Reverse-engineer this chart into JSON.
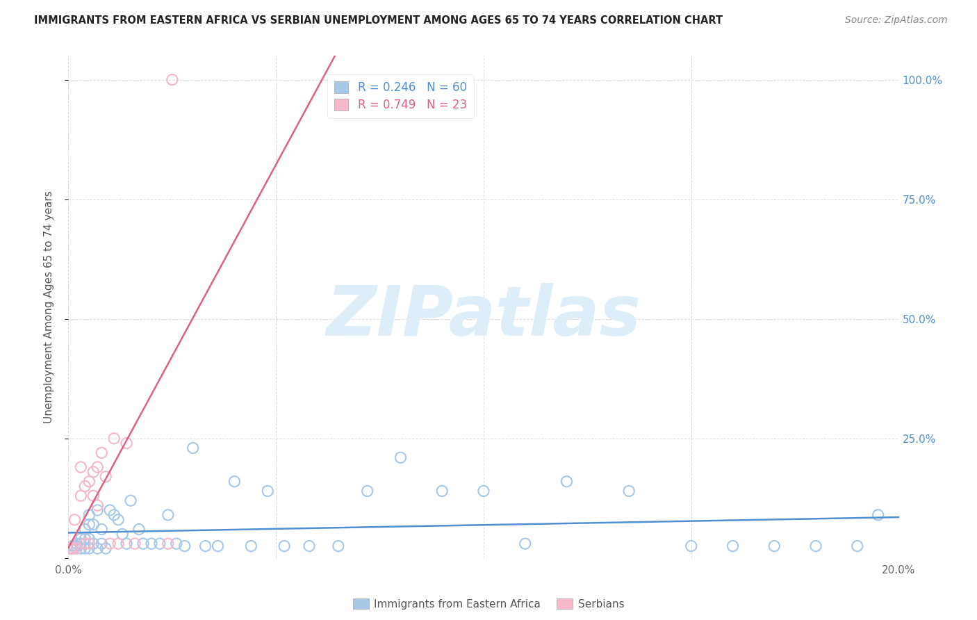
{
  "title": "IMMIGRANTS FROM EASTERN AFRICA VS SERBIAN UNEMPLOYMENT AMONG AGES 65 TO 74 YEARS CORRELATION CHART",
  "source_text": "Source: ZipAtlas.com",
  "ylabel": "Unemployment Among Ages 65 to 74 years",
  "xlim": [
    0.0,
    0.2
  ],
  "ylim": [
    0.0,
    1.05
  ],
  "xticks": [
    0.0,
    0.05,
    0.1,
    0.15,
    0.2
  ],
  "xtick_labels": [
    "0.0%",
    "",
    "",
    "",
    "20.0%"
  ],
  "ytick_labels": [
    "",
    "25.0%",
    "50.0%",
    "75.0%",
    "100.0%"
  ],
  "yticks": [
    0.0,
    0.25,
    0.5,
    0.75,
    1.0
  ],
  "R_blue": 0.246,
  "N_blue": 60,
  "R_pink": 0.749,
  "N_pink": 23,
  "blue_color": "#a8c8e8",
  "pink_color": "#f5b8c8",
  "blue_line_color": "#5090d0",
  "pink_line_color": "#e06080",
  "watermark": "ZIPatlas",
  "watermark_color": "#ddeef8",
  "blue_scatter_x": [
    0.0005,
    0.001,
    0.001,
    0.0015,
    0.002,
    0.002,
    0.002,
    0.003,
    0.003,
    0.003,
    0.004,
    0.004,
    0.004,
    0.004,
    0.005,
    0.005,
    0.005,
    0.005,
    0.006,
    0.006,
    0.007,
    0.007,
    0.008,
    0.008,
    0.009,
    0.01,
    0.011,
    0.012,
    0.013,
    0.014,
    0.015,
    0.017,
    0.018,
    0.02,
    0.022,
    0.024,
    0.026,
    0.028,
    0.03,
    0.033,
    0.036,
    0.04,
    0.044,
    0.048,
    0.052,
    0.058,
    0.065,
    0.072,
    0.08,
    0.09,
    0.1,
    0.11,
    0.12,
    0.135,
    0.15,
    0.16,
    0.17,
    0.18,
    0.19,
    0.195
  ],
  "blue_scatter_y": [
    0.02,
    0.02,
    0.025,
    0.025,
    0.02,
    0.025,
    0.03,
    0.02,
    0.03,
    0.04,
    0.02,
    0.03,
    0.04,
    0.06,
    0.02,
    0.04,
    0.07,
    0.09,
    0.03,
    0.07,
    0.02,
    0.1,
    0.03,
    0.06,
    0.02,
    0.1,
    0.09,
    0.08,
    0.05,
    0.03,
    0.12,
    0.06,
    0.03,
    0.03,
    0.03,
    0.09,
    0.03,
    0.025,
    0.23,
    0.025,
    0.025,
    0.16,
    0.025,
    0.14,
    0.025,
    0.025,
    0.025,
    0.14,
    0.21,
    0.14,
    0.14,
    0.03,
    0.16,
    0.14,
    0.025,
    0.025,
    0.025,
    0.025,
    0.025,
    0.09
  ],
  "pink_scatter_x": [
    0.0005,
    0.001,
    0.0015,
    0.002,
    0.003,
    0.003,
    0.004,
    0.004,
    0.005,
    0.005,
    0.006,
    0.006,
    0.007,
    0.007,
    0.008,
    0.009,
    0.01,
    0.011,
    0.012,
    0.014,
    0.016,
    0.024,
    0.025
  ],
  "pink_scatter_y": [
    0.02,
    0.02,
    0.08,
    0.02,
    0.13,
    0.19,
    0.15,
    0.03,
    0.16,
    0.03,
    0.18,
    0.13,
    0.19,
    0.11,
    0.22,
    0.17,
    0.03,
    0.25,
    0.03,
    0.24,
    0.03,
    0.03,
    1.0
  ]
}
